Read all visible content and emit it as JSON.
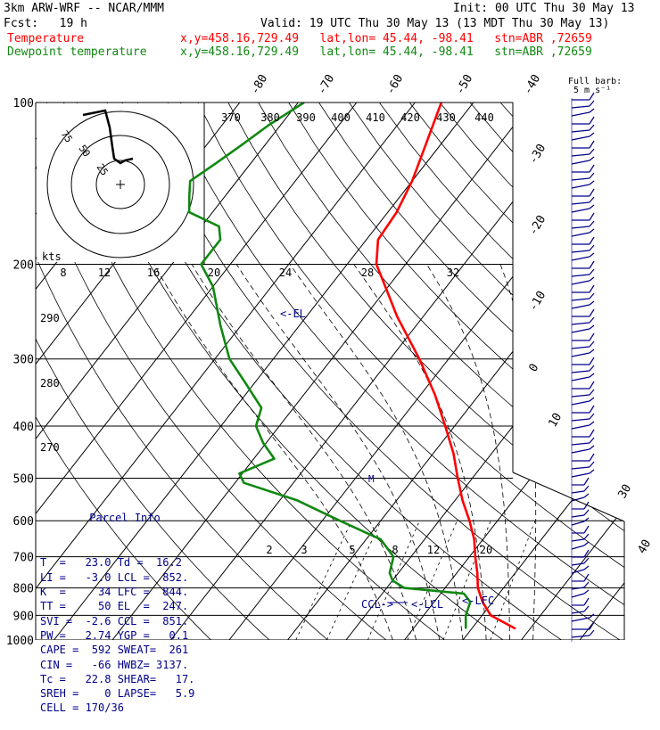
{
  "header": {
    "model": "3km ARW-WRF -- NCAR/MMM",
    "init": "Init: 00 UTC Thu 30 May 13",
    "fcst": "Fcst:   19 h",
    "valid": "Valid: 19 UTC Thu 30 May 13 (13 MDT Thu 30 May 13)",
    "temp_label": "Temperature",
    "temp_loc": "x,y=458.16,729.49   lat,lon= 45.44, -98.41   stn=ABR ,72659",
    "dew_label": "Dewpoint temperature",
    "dew_loc": "x,y=458.16,729.49   lat,lon= 45.44, -98.41   stn=ABR ,72659"
  },
  "colors": {
    "temperature": "#ff0000",
    "dewpoint": "#118811",
    "annotation": "#00008b",
    "grid": "#000000"
  },
  "parcel_info": {
    "title": "Parcel Info",
    "rows": [
      "T  =   23.0 Td =  16.2",
      "LI =   -3.0 LCL =  852.",
      "K  =     34 LFC =  844.",
      "TT =     50 EL  =  247.",
      "SVI =  -2.6 CCL =  851.",
      "PW =   2.74 YGP =   0.1",
      "CAPE =  592 SWEAT=  261",
      "CIN =   -66 HWBZ= 3137.",
      "Tc =   22.8 SHEAR=   17.",
      "SREH =    0 LAPSE=   5.9",
      "CELL = 170/36"
    ]
  },
  "chart_data": {
    "type": "line",
    "title": "",
    "pressure_levels": [
      100,
      200,
      300,
      400,
      500,
      600,
      700,
      800,
      900,
      1000
    ],
    "pressure_labels": [
      "100",
      "200",
      "300",
      "400",
      "500",
      "600",
      "700",
      "800",
      "900",
      "1000"
    ],
    "isotherm_labels": [
      "-80",
      "-70",
      "-60",
      "-50",
      "-40",
      "-30",
      "-20",
      "-10",
      "0",
      "10",
      "30",
      "40"
    ],
    "theta_labels": [
      "370",
      "380",
      "390",
      "400",
      "410",
      "420",
      "430",
      "440"
    ],
    "theta_left_labels": [
      "290",
      "280",
      "270"
    ],
    "mixing_ratio_labels": [
      "2",
      "3",
      "5",
      "8",
      "12",
      "20"
    ],
    "hodograph": {
      "units": "kts",
      "ring_labels": [
        "75",
        "50",
        "25"
      ],
      "scale_labels": [
        "8",
        "12",
        "16",
        "20",
        "24",
        "28",
        "32"
      ]
    },
    "wind_barb_legend": [
      "Full barb:",
      "5 m s⁻¹"
    ],
    "annotations": {
      "el": "<-EL",
      "ccl": "CCL->",
      "lcl": "<-LCL",
      "lfc": "<-LFC",
      "m": "M"
    },
    "series": [
      {
        "name": "Temperature",
        "pressure": [
          953,
          900,
          850,
          800,
          750,
          700,
          650,
          600,
          550,
          500,
          450,
          400,
          350,
          300,
          250,
          220,
          200,
          180,
          160,
          140,
          120,
          100
        ],
        "temperature": [
          27.5,
          21.5,
          18.3,
          15.6,
          13.5,
          11.0,
          8.5,
          5.2,
          1.3,
          -2.5,
          -6.5,
          -11.6,
          -17.5,
          -25.0,
          -34.5,
          -40.5,
          -45.0,
          -48.0,
          -48.5,
          -50.0,
          -52.5,
          -55.5
        ]
      },
      {
        "name": "Dewpoint temperature",
        "pressure": [
          953,
          900,
          850,
          820,
          800,
          775,
          750,
          700,
          650,
          600,
          550,
          510,
          490,
          460,
          430,
          400,
          370,
          330,
          300,
          260,
          220,
          200,
          180,
          170,
          160,
          150,
          140,
          130,
          120,
          110,
          100
        ],
        "dewpoint": [
          19.0,
          17.2,
          16.2,
          14.0,
          3.0,
          0.0,
          -1.5,
          -3.0,
          -7.5,
          -17.0,
          -27.0,
          -38.5,
          -40.5,
          -36.5,
          -40.5,
          -44.0,
          -45.5,
          -52.0,
          -57.5,
          -63.5,
          -70.0,
          -75.0,
          -75.0,
          -77.0,
          -84.0,
          -86.0,
          -88.0,
          -86.0,
          -84.0,
          -82.0,
          -79.0
        ]
      }
    ]
  }
}
